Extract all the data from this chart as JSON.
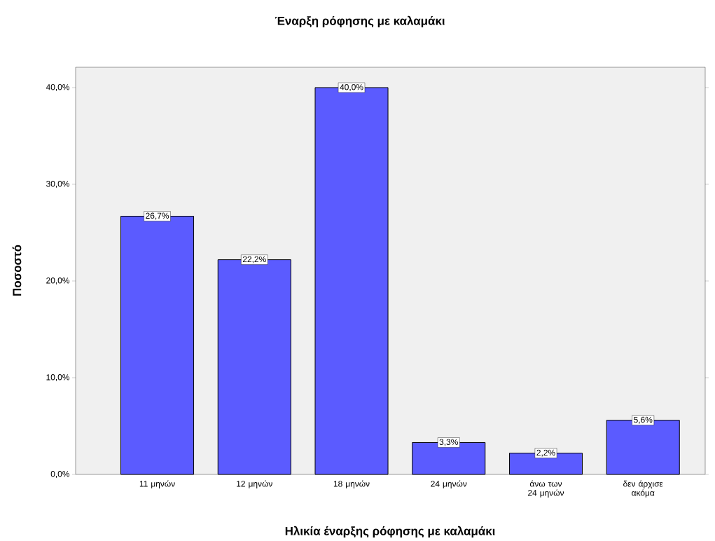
{
  "chart_data": {
    "type": "bar",
    "title": "Έναρξη ρόφησης με καλαμάκι",
    "xlabel": "Ηλικία έναρξης ρόφησης με καλαμάκι",
    "ylabel": "Ποσοστό",
    "categories": [
      "11 μηνών",
      "12 μηνών",
      "18 μηνών",
      "24 μηνών",
      "άνω των 24 μηνών",
      "δεν άρχισε ακόμα"
    ],
    "values": [
      26.7,
      22.2,
      40.0,
      3.3,
      2.2,
      5.6
    ],
    "value_labels": [
      "26,7%",
      "22,2%",
      "40,0%",
      "3,3%",
      "2,2%",
      "5,6%"
    ],
    "color": "#5b5bff",
    "ylim": [
      0,
      42.1
    ],
    "yticks": [
      {
        "value": 0,
        "label": "0,0%"
      },
      {
        "value": 10,
        "label": "10,0%"
      },
      {
        "value": 20,
        "label": "20,0%"
      },
      {
        "value": 30,
        "label": "30,0%"
      },
      {
        "value": 40,
        "label": "40,0%"
      }
    ],
    "grid": false
  }
}
